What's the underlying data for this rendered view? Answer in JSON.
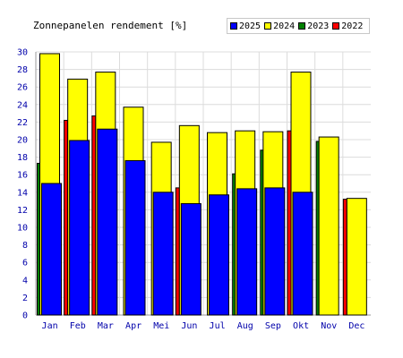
{
  "chart_data": {
    "type": "bar",
    "title": "Zonnepanelen rendement [%]",
    "categories": [
      "Jan",
      "Feb",
      "Mar",
      "Apr",
      "Mei",
      "Jun",
      "Jul",
      "Aug",
      "Sep",
      "Okt",
      "Nov",
      "Dec"
    ],
    "ylim": [
      0,
      30
    ],
    "yticks": [
      0,
      2,
      4,
      6,
      8,
      10,
      12,
      14,
      16,
      18,
      20,
      22,
      24,
      26,
      28,
      30
    ],
    "grid": true,
    "legend_position": "top-right",
    "series": [
      {
        "name": "2022",
        "color": "#ff0000",
        "values": [
          null,
          22.2,
          22.7,
          null,
          null,
          14.5,
          null,
          null,
          null,
          21.0,
          null,
          13.2
        ]
      },
      {
        "name": "2023",
        "color": "#008000",
        "values": [
          17.3,
          null,
          null,
          null,
          null,
          null,
          null,
          16.1,
          18.8,
          null,
          19.8,
          null
        ]
      },
      {
        "name": "2024",
        "color": "#ffff00",
        "values": [
          29.8,
          26.9,
          27.7,
          23.7,
          19.7,
          21.6,
          20.8,
          21.0,
          20.9,
          27.7,
          20.3,
          13.3
        ]
      },
      {
        "name": "2025",
        "color": "#0000ff",
        "values": [
          15.0,
          19.9,
          21.2,
          17.6,
          14.0,
          12.7,
          13.7,
          14.4,
          14.5,
          14.0,
          null,
          null
        ]
      }
    ]
  }
}
